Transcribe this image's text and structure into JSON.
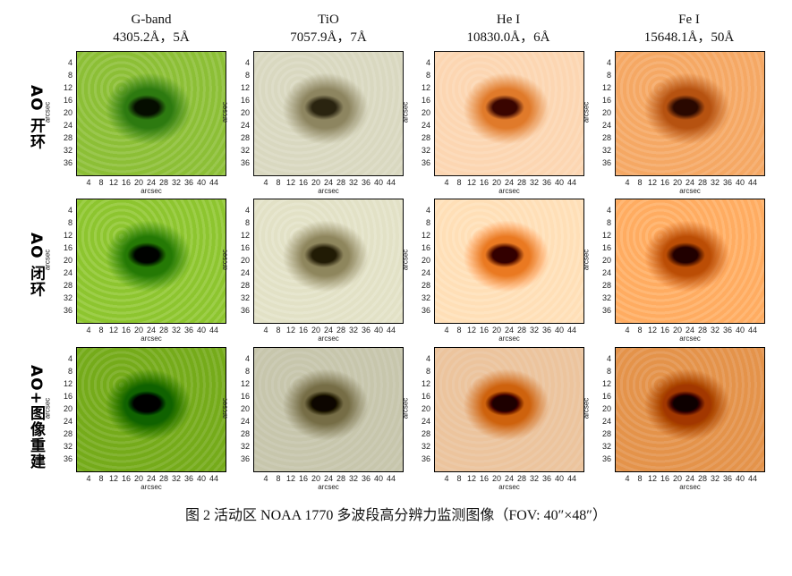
{
  "columns": [
    {
      "name": "G-band",
      "spec": "4305.2Å，5Å"
    },
    {
      "name": "TiO",
      "spec": "7057.9Å，7Å"
    },
    {
      "name": "He I",
      "spec": "10830.0Å，6Å"
    },
    {
      "name": "Fe I",
      "spec": "15648.1Å，50Å"
    }
  ],
  "rows": [
    {
      "label": "AO 开环"
    },
    {
      "label": "AO 闭环"
    },
    {
      "label": "AO+图像重建"
    }
  ],
  "axes": {
    "xlabel": "arcsec",
    "ylabel": "arcsec",
    "xticks": [
      4,
      8,
      12,
      16,
      20,
      24,
      28,
      32,
      36,
      40,
      44
    ],
    "yticks": [
      4,
      8,
      12,
      16,
      20,
      24,
      28,
      32,
      36
    ],
    "xrange": [
      0,
      48
    ],
    "yrange": [
      0,
      40
    ]
  },
  "colors": {
    "gband": {
      "bg": "#8cbf36",
      "pen": "#2d7a10",
      "umb": "#050d00"
    },
    "tio": {
      "bg": "#d9d8c0",
      "pen": "#8d8560",
      "umb": "#2a2410"
    },
    "hei": {
      "bg": "#fcd6b2",
      "pen": "#e07a2a",
      "umb": "#3a0500"
    },
    "fei": {
      "bg": "#f5a864",
      "pen": "#b65210",
      "umb": "#2a0800"
    }
  },
  "caption": "图 2  活动区 NOAA 1770 多波段高分辨力监测图像（FOV: 40″×48″）"
}
